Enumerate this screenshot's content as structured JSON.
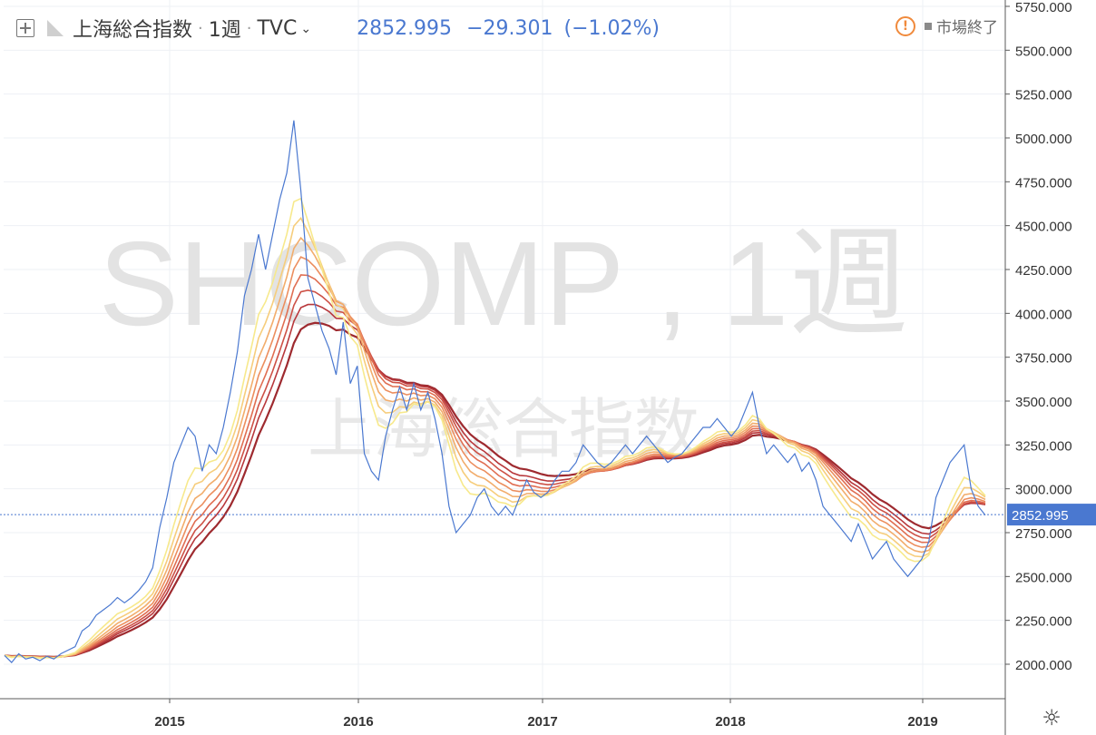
{
  "header": {
    "symbol_name": "上海総合指数",
    "interval": "1週",
    "exchange": "TVC",
    "price": "2852.995",
    "change": "−29.301",
    "change_percent": "(−1.02%)",
    "market_status": "市場終了"
  },
  "watermark": {
    "main": "SHCOMP , 1週",
    "sub": "上海総合指数"
  },
  "last_price_label": "2852.995",
  "colors": {
    "price_line": "#4a78d0",
    "last_price_bg": "#4a78d0",
    "ribbon": [
      "#f7e98c",
      "#f6cd7c",
      "#f2ad6c",
      "#ec8e5e",
      "#e06e52",
      "#cd5146",
      "#b8383c",
      "#9e2a2f"
    ],
    "warning": "#f08a3c"
  },
  "chart_data": {
    "type": "line",
    "y_scale": "linear",
    "ylim": [
      1860,
      5800
    ],
    "y_ticks": [
      "2000.000",
      "2250.000",
      "2500.000",
      "2750.000",
      "3000.000",
      "3250.000",
      "3500.000",
      "3750.000",
      "4000.000",
      "4250.000",
      "4500.000",
      "4750.000",
      "5000.000",
      "5250.000",
      "5500.000",
      "5750.000"
    ],
    "x_ticks": [
      "2015",
      "2016",
      "2017",
      "2018",
      "2019"
    ],
    "last_price": 2852.995,
    "series": [
      {
        "values": [
          2050,
          2010,
          2060,
          2030,
          2040,
          2020,
          2045,
          2030,
          2060,
          2080,
          2100,
          2190,
          2220,
          2280,
          2310,
          2340,
          2380,
          2350,
          2380,
          2420,
          2470,
          2550,
          2780,
          2950,
          3150,
          3250,
          3350,
          3300,
          3100,
          3250,
          3200,
          3350,
          3550,
          3780,
          4100,
          4250,
          4450,
          4250,
          4450,
          4650,
          4800,
          5100,
          4700,
          4200,
          4050,
          3900,
          3800,
          3650,
          3950,
          3600,
          3700,
          3200,
          3100,
          3050,
          3300,
          3450,
          3580,
          3450,
          3600,
          3450,
          3550,
          3400,
          3200,
          2900,
          2750,
          2800,
          2850,
          2950,
          3000,
          2900,
          2850,
          2900,
          2850,
          2950,
          3050,
          2980,
          2950,
          2980,
          3050,
          3100,
          3100,
          3150,
          3250,
          3200,
          3150,
          3120,
          3150,
          3200,
          3250,
          3200,
          3250,
          3300,
          3250,
          3200,
          3150,
          3180,
          3200,
          3250,
          3300,
          3350,
          3350,
          3400,
          3350,
          3300,
          3350,
          3450,
          3550,
          3350,
          3200,
          3250,
          3200,
          3150,
          3200,
          3100,
          3150,
          3050,
          2900,
          2850,
          2800,
          2750,
          2700,
          2800,
          2700,
          2600,
          2650,
          2700,
          2600,
          2550,
          2500,
          2550,
          2600,
          2700,
          2950,
          3050,
          3150,
          3200,
          3250,
          3000,
          2900,
          2850
        ],
        "color": "#4a78d0"
      }
    ]
  }
}
